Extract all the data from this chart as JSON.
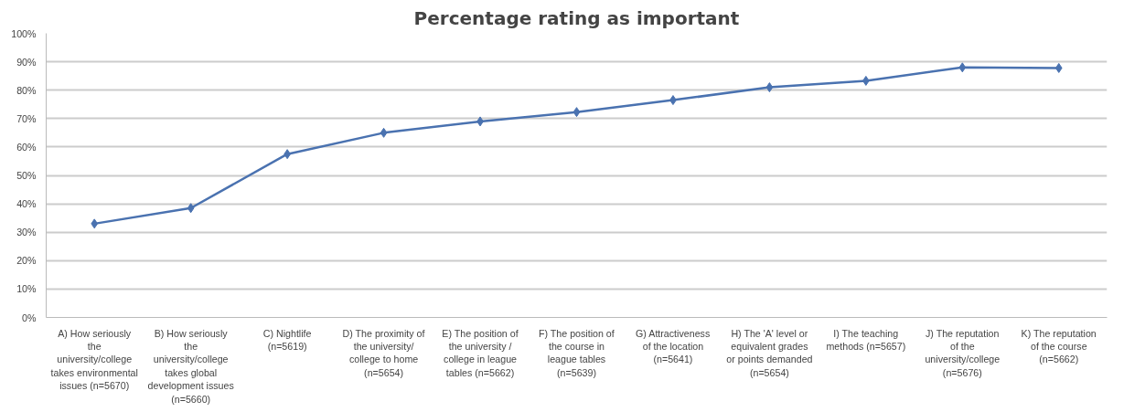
{
  "chart_data": {
    "type": "line",
    "title": "Percentage rating as important",
    "categories": [
      "A) How seriously the university/college takes environmental issues (n=5670)",
      "B) How seriously the university/college takes global development issues (n=5660)",
      "C) Nightlife (n=5619)",
      "D) The proximity of the university/ college to home (n=5654)",
      "E) The position of the university / college in league tables (n=5662)",
      "F) The position of the course in league tables (n=5639)",
      "G) Attractiveness of the location (n=5641)",
      "H) The 'A' level or equivalent grades or points demanded (n=5654)",
      "I) The teaching methods (n=5657)",
      "J) The reputation of the university/college (n=5676)",
      "K) The reputation of the course (n=5662)"
    ],
    "series": [
      {
        "color": "#4a72b0",
        "values": [
          33,
          38.5,
          57.5,
          65,
          69,
          72.3,
          76.5,
          81,
          83.3,
          88,
          87.8
        ]
      }
    ],
    "ylim": [
      0,
      100
    ],
    "yticks": [
      {
        "value": 0,
        "label": "0%"
      },
      {
        "value": 10,
        "label": "10%"
      },
      {
        "value": 20,
        "label": "20%"
      },
      {
        "value": 30,
        "label": "30%"
      },
      {
        "value": 40,
        "label": "40%"
      },
      {
        "value": 50,
        "label": "50%"
      },
      {
        "value": 60,
        "label": "60%"
      },
      {
        "value": 70,
        "label": "70%"
      },
      {
        "value": 80,
        "label": "80%"
      },
      {
        "value": 90,
        "label": "90%"
      },
      {
        "value": 100,
        "label": "100%"
      }
    ],
    "grid": "y",
    "marker": "diamond",
    "line_style": "solid"
  }
}
